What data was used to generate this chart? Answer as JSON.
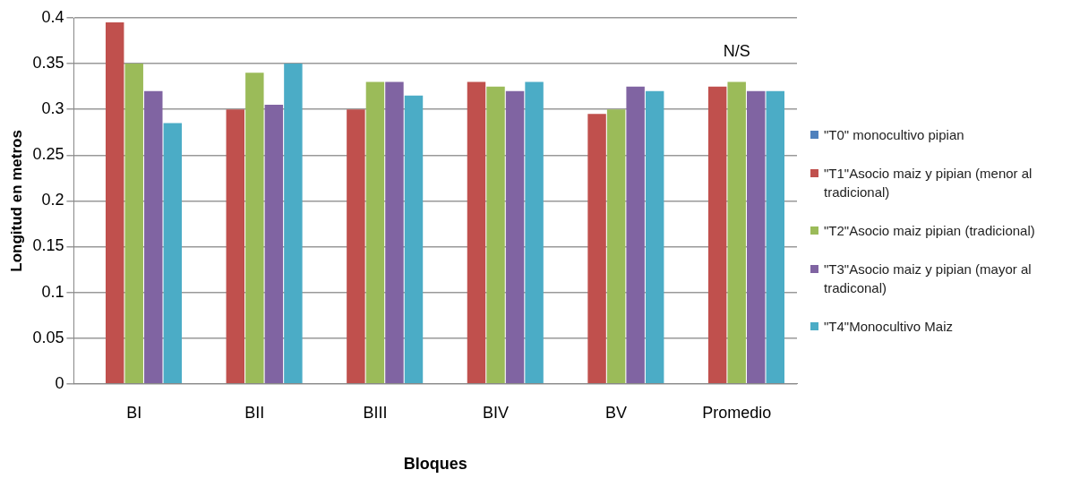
{
  "chart_data": {
    "type": "bar",
    "xlabel": "Bloques",
    "ylabel": "Longitud en metros",
    "categories": [
      "BI",
      "BII",
      "BIII",
      "BIV",
      "BV",
      "Promedio"
    ],
    "series": [
      {
        "name": "\"T0\" monocultivo pipian",
        "color": "#4f81bd",
        "values": [
          0,
          0,
          0,
          0,
          0,
          0
        ]
      },
      {
        "name": "\"T1\"Asocio maiz y pipian (menor al tradicional)",
        "color": "#c0504d",
        "values": [
          0.395,
          0.3,
          0.3,
          0.33,
          0.295,
          0.325
        ]
      },
      {
        "name": "\"T2\"Asocio maiz pipian (tradicional)",
        "color": "#9bbb59",
        "values": [
          0.35,
          0.34,
          0.33,
          0.325,
          0.3,
          0.33
        ]
      },
      {
        "name": "\"T3\"Asocio maiz y pipian (mayor al tradiconal)",
        "color": "#8064a2",
        "values": [
          0.32,
          0.305,
          0.33,
          0.32,
          0.325,
          0.32
        ]
      },
      {
        "name": "\"T4\"Monocultivo Maiz",
        "color": "#4bacc6",
        "values": [
          0.285,
          0.35,
          0.315,
          0.33,
          0.32,
          0.32
        ]
      }
    ],
    "ylim": [
      0,
      0.4
    ],
    "yticks": [
      0,
      0.05,
      0.1,
      0.15,
      0.2,
      0.25,
      0.3,
      0.35,
      0.4
    ],
    "grid": "y",
    "legend": "right",
    "annotations": [
      "N/S"
    ]
  }
}
